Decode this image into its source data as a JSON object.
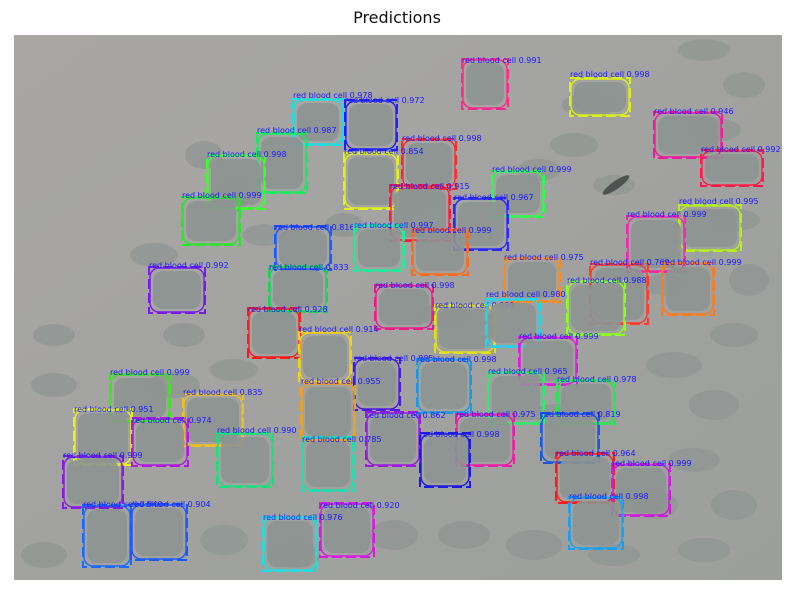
{
  "figure": {
    "title": "Predictions"
  },
  "detections": [
    {
      "label": "red blood cell 0.991",
      "score": 0.991,
      "color": "#ff2a8a"
    },
    {
      "label": "red blood cell 0.998",
      "score": 0.998,
      "color": "#d9ee1a"
    },
    {
      "label": "red blood cell 0.978",
      "score": 0.978,
      "color": "#18e1e1"
    },
    {
      "label": "red blood cell 0.972",
      "score": 0.972,
      "color": "#1e22ff"
    },
    {
      "label": "red blood cell 0.946",
      "score": 0.946,
      "color": "#ef1aa0"
    },
    {
      "label": "red blood cell 0.987",
      "score": 0.987,
      "color": "#12ee5a"
    },
    {
      "label": "red blood cell 0.998",
      "score": 0.998,
      "color": "#ff2a2a"
    },
    {
      "label": "red blood cell 0.992",
      "score": 0.992,
      "color": "#ff1a4a"
    },
    {
      "label": "red blood cell 0.998",
      "score": 0.998,
      "color": "#36ff2a"
    },
    {
      "label": "red blood cell 0.854",
      "score": 0.854,
      "color": "#e0f01a"
    },
    {
      "label": "red blood cell 0.999",
      "score": 0.999,
      "color": "#2aff4a"
    },
    {
      "label": "red blood cell 0.915",
      "score": 0.915,
      "color": "#ff1a3a"
    },
    {
      "label": "red blood cell 0.999",
      "score": 0.999,
      "color": "#2ae52a"
    },
    {
      "label": "red blood cell 0.967",
      "score": 0.967,
      "color": "#2a2aff"
    },
    {
      "label": "red blood cell 0.995",
      "score": 0.995,
      "color": "#b5ee1a"
    },
    {
      "label": "red blood cell 0.999",
      "score": 0.999,
      "color": "#ef2ab0"
    },
    {
      "label": "red blood cell 0.816",
      "score": 0.816,
      "color": "#1a5aff"
    },
    {
      "label": "red blood cell 0.997",
      "score": 0.997,
      "color": "#1aee9a"
    },
    {
      "label": "red blood cell 0.999",
      "score": 0.999,
      "color": "#ff6a1a"
    },
    {
      "label": "red blood cell 0.975",
      "score": 0.975,
      "color": "#ff8a1a"
    },
    {
      "label": "red blood cell 0.992",
      "score": 0.992,
      "color": "#7a1aee"
    },
    {
      "label": "red blood cell 0.833",
      "score": 0.833,
      "color": "#1ad25a"
    },
    {
      "label": "red blood cell 0.760",
      "score": 0.76,
      "color": "#ff3a2a"
    },
    {
      "label": "red blood cell 0.999",
      "score": 0.999,
      "color": "#ff7a1a"
    },
    {
      "label": "red blood cell 0.988",
      "score": 0.988,
      "color": "#8aff1a"
    },
    {
      "label": "red blood cell 0.998",
      "score": 0.998,
      "color": "#ee1a8a"
    },
    {
      "label": "red blood cell 0.999",
      "score": 0.999,
      "color": "#e0e01a"
    },
    {
      "label": "red blood cell 0.928",
      "score": 0.928,
      "color": "#ff1a1a"
    },
    {
      "label": "red blood cell 0.980",
      "score": 0.98,
      "color": "#1ad8f0"
    },
    {
      "label": "red blood cell 0.914",
      "score": 0.914,
      "color": "#f0d21a"
    },
    {
      "label": "red blood cell 0.999",
      "score": 0.999,
      "color": "#e01ae0"
    },
    {
      "label": "red blood cell 0.885",
      "score": 0.885,
      "color": "#4a1ae0"
    },
    {
      "label": "red blood cell 0.998",
      "score": 0.998,
      "color": "#1a9ae0"
    },
    {
      "label": "red blood cell 0.999",
      "score": 0.999,
      "color": "#3ae81a"
    },
    {
      "label": "red blood cell 0.955",
      "score": 0.955,
      "color": "#f0a01a"
    },
    {
      "label": "red blood cell 0.965",
      "score": 0.965,
      "color": "#2aee6a"
    },
    {
      "label": "red blood cell 0.978",
      "score": 0.978,
      "color": "#1aee4a"
    },
    {
      "label": "red blood cell 0.835",
      "score": 0.835,
      "color": "#f0c01a"
    },
    {
      "label": "red blood cell 0.951",
      "score": 0.951,
      "color": "#e8f01a"
    },
    {
      "label": "red blood cell 0.974",
      "score": 0.974,
      "color": "#b01ae0"
    },
    {
      "label": "red blood cell 0.862",
      "score": 0.862,
      "color": "#9a1ae0"
    },
    {
      "label": "red blood cell 0.975",
      "score": 0.975,
      "color": "#ee1aa8"
    },
    {
      "label": "red blood cell 0.819",
      "score": 0.819,
      "color": "#1a5ae0"
    },
    {
      "label": "red blood cell 0.990",
      "score": 0.99,
      "color": "#1ae07a"
    },
    {
      "label": "red blood cell 0.785",
      "score": 0.785,
      "color": "#1ae0b0"
    },
    {
      "label": "red blood cell 0.998",
      "score": 0.998,
      "color": "#1a1ae0"
    },
    {
      "label": "red blood cell 0.999",
      "score": 0.999,
      "color": "#8a1ae0"
    },
    {
      "label": "red blood cell 0.964",
      "score": 0.964,
      "color": "#ff1a1a"
    },
    {
      "label": "red blood cell 0.999",
      "score": 0.999,
      "color": "#d01ae0"
    },
    {
      "label": "red blood cell 0.998",
      "score": 0.998,
      "color": "#1aa0f0"
    },
    {
      "label": "red blood cell 0.849",
      "score": 0.849,
      "color": "#1a6aff"
    },
    {
      "label": "red blood cell 0.904",
      "score": 0.904,
      "color": "#1a5aff"
    },
    {
      "label": "red blood cell 0.920",
      "score": 0.92,
      "color": "#d81ae0"
    },
    {
      "label": "red blood cell 0.976",
      "score": 0.976,
      "color": "#1ae0e0"
    }
  ]
}
